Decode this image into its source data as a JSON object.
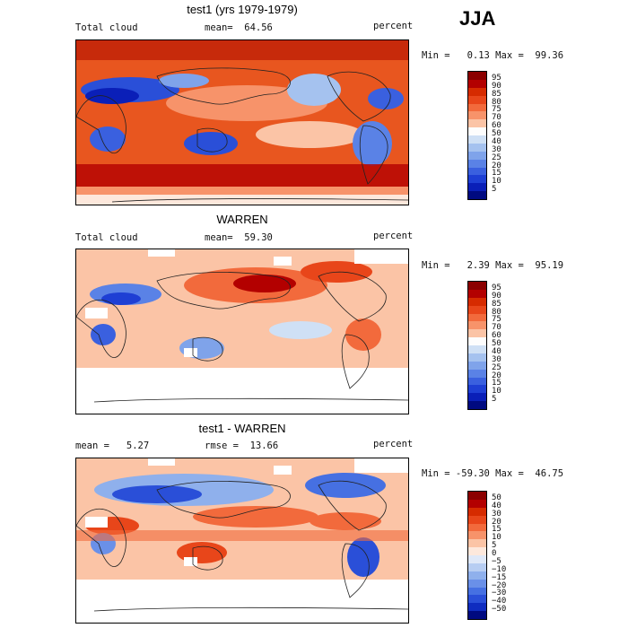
{
  "season": "JJA",
  "panels": [
    {
      "title": "test1 (yrs 1979-1979)",
      "left_label": "Total cloud",
      "mean_label": "mean=  64.56",
      "unit": "percent",
      "minmax": "Min =   0.13 Max =  99.36",
      "colorbar_labels": [
        "95",
        "90",
        "85",
        "80",
        "75",
        "70",
        "60",
        "50",
        "40",
        "30",
        "25",
        "20",
        "15",
        "10",
        "5"
      ],
      "colors": [
        "#8b0000",
        "#b30000",
        "#d62b00",
        "#e8461a",
        "#f26a3c",
        "#f7936a",
        "#fbc4a6",
        "#fdfdfd",
        "#cfe0f5",
        "#a5c2ef",
        "#7fa3ea",
        "#5a82e6",
        "#3a60df",
        "#1e3fd4",
        "#0a1fb8",
        "#000a80"
      ]
    },
    {
      "title": "WARREN",
      "left_label": "Total cloud",
      "mean_label": "mean=  59.30",
      "unit": "percent",
      "minmax": "Min =   2.39 Max =  95.19",
      "colorbar_labels": [
        "95",
        "90",
        "85",
        "80",
        "75",
        "70",
        "60",
        "50",
        "40",
        "30",
        "25",
        "20",
        "15",
        "10",
        "5"
      ],
      "colors": [
        "#8b0000",
        "#b30000",
        "#d62b00",
        "#e8461a",
        "#f26a3c",
        "#f7936a",
        "#fbc4a6",
        "#fdfdfd",
        "#cfe0f5",
        "#a5c2ef",
        "#7fa3ea",
        "#5a82e6",
        "#3a60df",
        "#1e3fd4",
        "#0a1fb8",
        "#000a80"
      ]
    },
    {
      "title": "test1 - WARREN",
      "left_label": "mean =   5.27",
      "mean_label": "rmse =  13.66",
      "unit": "percent",
      "minmax": "Min = -59.30 Max =  46.75",
      "colorbar_labels": [
        "50",
        "40",
        "30",
        "20",
        "15",
        "10",
        "5",
        "0",
        "−5",
        "−10",
        "−15",
        "−20",
        "−30",
        "−40",
        "−50"
      ],
      "colors": [
        "#8b0000",
        "#b30000",
        "#d62b00",
        "#e8461a",
        "#f26a3c",
        "#f7936a",
        "#fbc4a6",
        "#fde8dc",
        "#dfe8f8",
        "#b7cdf2",
        "#8fb0ec",
        "#6a90e8",
        "#4670e2",
        "#2a4fd8",
        "#0f2cc0",
        "#000a80"
      ]
    }
  ]
}
